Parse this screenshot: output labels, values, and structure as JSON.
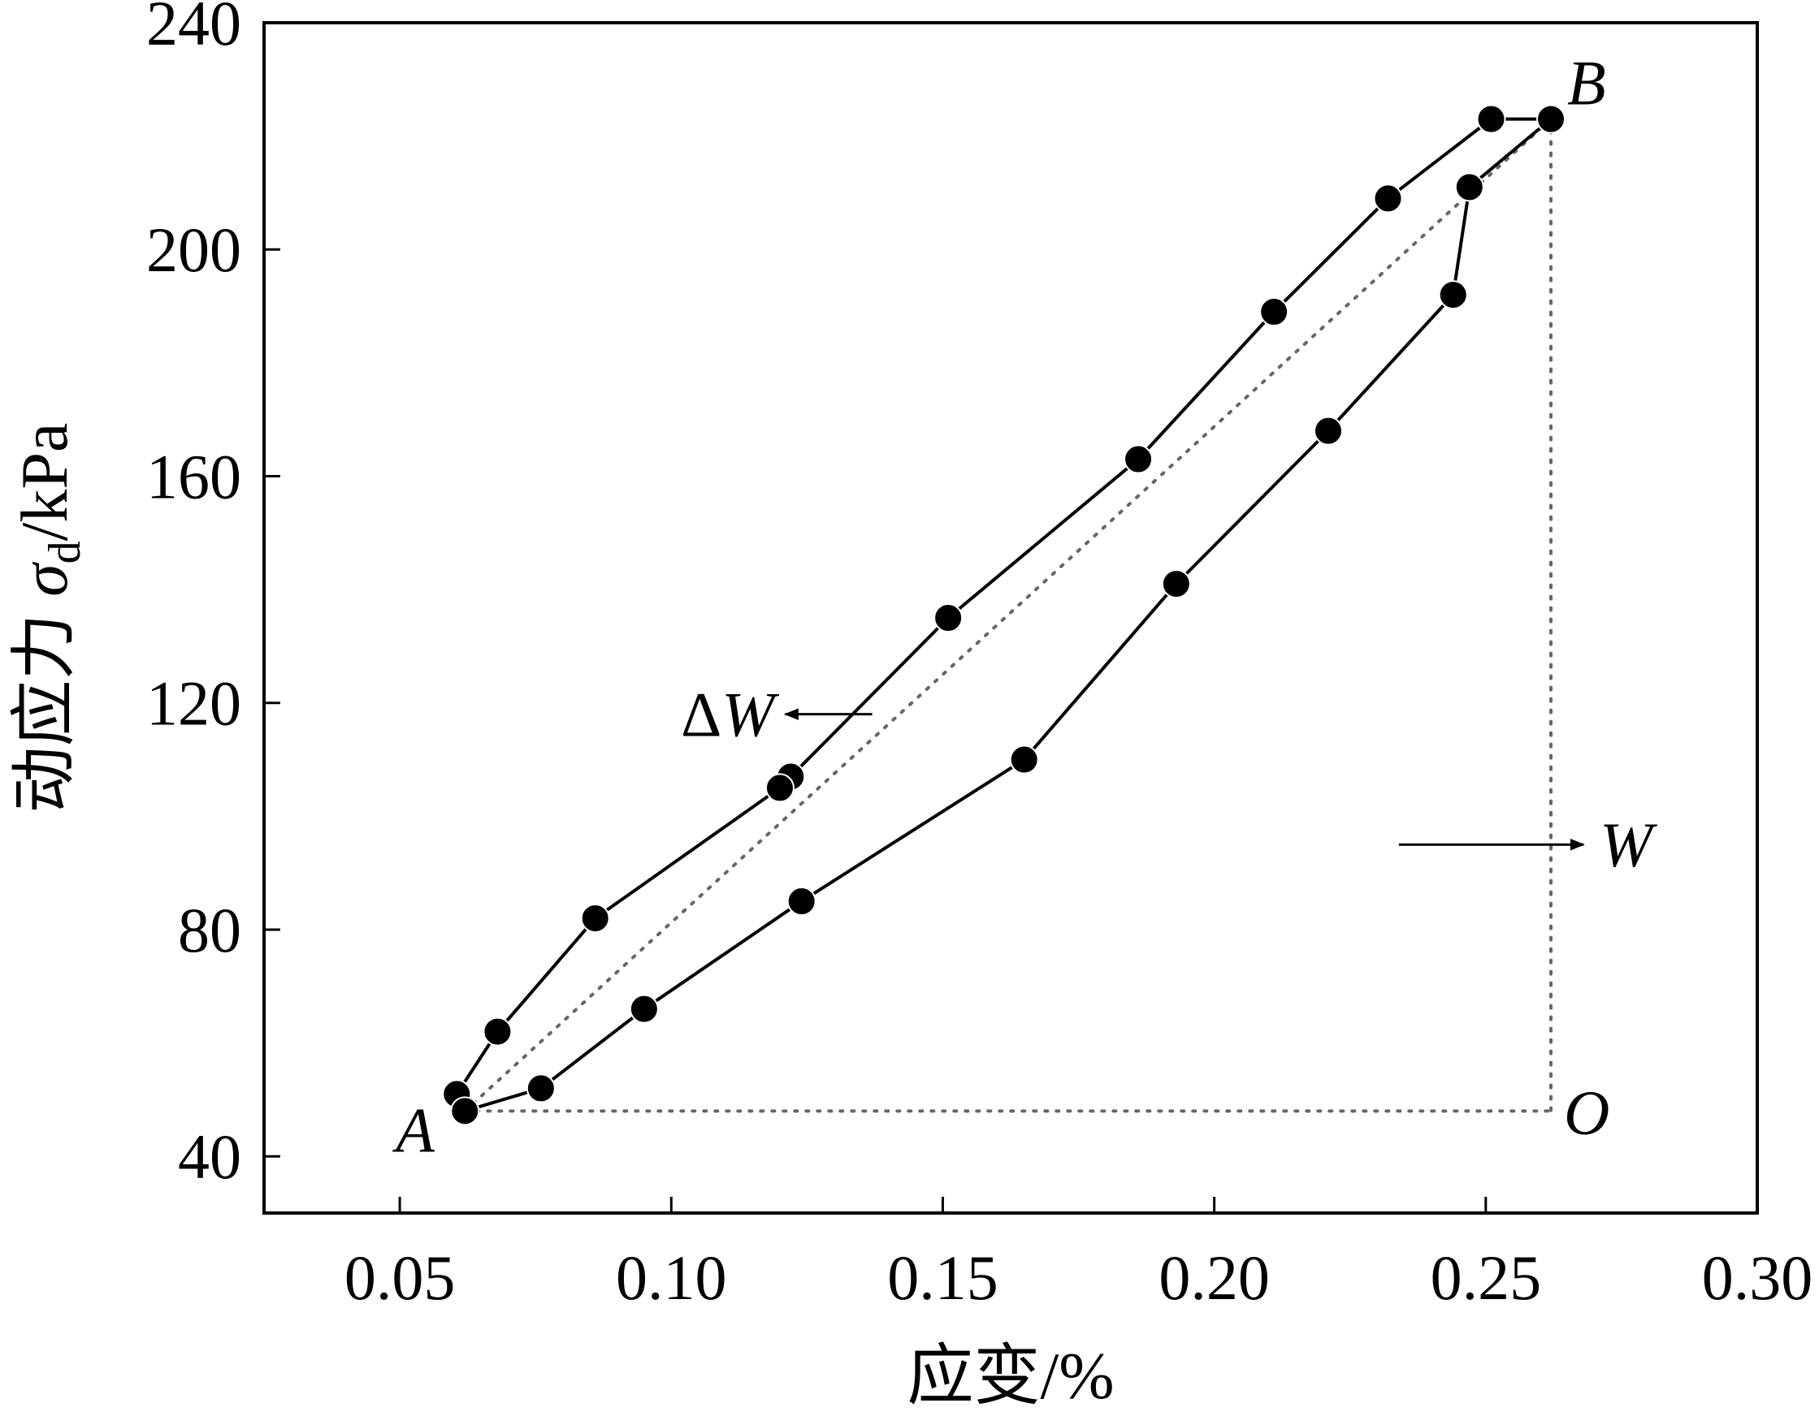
{
  "chart_data": {
    "type": "line",
    "title": "",
    "xlabel": "应变/%",
    "ylabel": {
      "prefix": "动应力 ",
      "symbol": "σ",
      "subscript": "d",
      "suffix": "/kPa"
    },
    "xlim": [
      0.025,
      0.3
    ],
    "ylim": [
      30,
      240
    ],
    "x_ticks": [
      0.05,
      0.1,
      0.15,
      0.2,
      0.25,
      0.3
    ],
    "x_tick_labels": [
      "0.05",
      "0.10",
      "0.15",
      "0.20",
      "0.25",
      "0.30"
    ],
    "y_ticks": [
      40,
      80,
      120,
      160,
      200,
      240
    ],
    "y_tick_labels": [
      "40",
      "80",
      "120",
      "160",
      "200",
      "240"
    ],
    "grid": false,
    "series": [
      {
        "kind": "hysteresis-loop",
        "x": [
          0.0605,
          0.062,
          0.076,
          0.095,
          0.124,
          0.165,
          0.193,
          0.221,
          0.244,
          0.247,
          0.262,
          0.251,
          0.232,
          0.211,
          0.186,
          0.151,
          0.122,
          0.12,
          0.086,
          0.068,
          0.0605
        ],
        "y": [
          51,
          48,
          52,
          66,
          85,
          110,
          141,
          168,
          192,
          211,
          223,
          223,
          209,
          189,
          163,
          135,
          107,
          105,
          82,
          62,
          51
        ]
      }
    ],
    "reference_lines": [
      {
        "kind": "diagonal",
        "x": [
          0.062,
          0.262
        ],
        "y": [
          48,
          223
        ]
      },
      {
        "kind": "vertical",
        "x": [
          0.262,
          0.262
        ],
        "y": [
          223,
          48
        ]
      },
      {
        "kind": "horizontal",
        "x": [
          0.062,
          0.262
        ],
        "y": [
          48,
          48
        ]
      }
    ],
    "point_labels": [
      {
        "id": "A",
        "text": "A",
        "x": 0.06,
        "y": 48
      },
      {
        "id": "B",
        "text": "B",
        "x": 0.262,
        "y": 223
      },
      {
        "id": "O",
        "text": "O",
        "x": 0.262,
        "y": 48
      }
    ],
    "annotations": [
      {
        "id": "delta-w",
        "delta": "Δ",
        "text": "W",
        "arrow_from": [
          0.137,
          118
        ],
        "arrow_to": [
          0.121,
          118
        ],
        "label_at": [
          0.119,
          118
        ]
      },
      {
        "id": "w",
        "delta": "",
        "text": "W",
        "arrow_from": [
          0.234,
          95
        ],
        "arrow_to": [
          0.268,
          95
        ],
        "label_at": [
          0.271,
          95
        ]
      }
    ]
  }
}
